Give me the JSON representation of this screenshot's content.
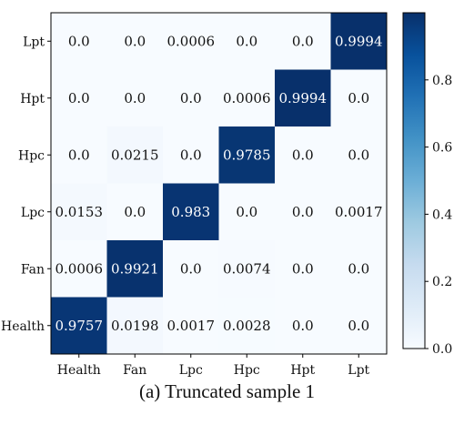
{
  "caption": "(a)  Truncated sample 1",
  "chart_data": {
    "type": "heatmap",
    "title": "",
    "xlabel": "",
    "ylabel": "",
    "x_categories": [
      "Health",
      "Fan",
      "Lpc",
      "Hpc",
      "Hpt",
      "Lpt"
    ],
    "y_categories": [
      "Lpt",
      "Hpt",
      "Hpc",
      "Lpc",
      "Fan",
      "Health"
    ],
    "values": [
      [
        0.0,
        0.0,
        0.0006,
        0.0,
        0.0,
        0.9994
      ],
      [
        0.0,
        0.0,
        0.0,
        0.0006,
        0.9994,
        0.0
      ],
      [
        0.0,
        0.0215,
        0.0,
        0.9785,
        0.0,
        0.0
      ],
      [
        0.0153,
        0.0,
        0.983,
        0.0,
        0.0,
        0.0017
      ],
      [
        0.0006,
        0.9921,
        0.0,
        0.0074,
        0.0,
        0.0
      ],
      [
        0.9757,
        0.0198,
        0.0017,
        0.0028,
        0.0,
        0.0
      ]
    ],
    "value_labels": [
      [
        "0.0",
        "0.0",
        "0.0006",
        "0.0",
        "0.0",
        "0.9994"
      ],
      [
        "0.0",
        "0.0",
        "0.0",
        "0.0006",
        "0.9994",
        "0.0"
      ],
      [
        "0.0",
        "0.0215",
        "0.0",
        "0.9785",
        "0.0",
        "0.0"
      ],
      [
        "0.0153",
        "0.0",
        "0.983",
        "0.0",
        "0.0",
        "0.0017"
      ],
      [
        "0.0006",
        "0.9921",
        "0.0",
        "0.0074",
        "0.0",
        "0.0"
      ],
      [
        "0.9757",
        "0.0198",
        "0.0017",
        "0.0028",
        "0.0",
        "0.0"
      ]
    ],
    "colorbar": {
      "range": [
        0.0,
        1.0
      ],
      "ticks": [
        0.0,
        0.2,
        0.4,
        0.6,
        0.8
      ],
      "tick_labels": [
        "0.0",
        "0.2",
        "0.4",
        "0.6",
        "0.8"
      ],
      "colormap": "Blues",
      "low_color": "#f7fbff",
      "high_color": "#08306b"
    }
  }
}
